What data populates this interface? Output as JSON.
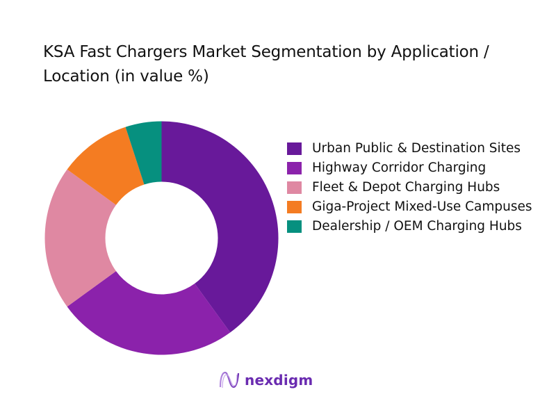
{
  "title": "KSA Fast Chargers Market Segmentation by Application / Location (in value %)",
  "chart_data": {
    "type": "pie",
    "subtype": "donut",
    "title": "KSA Fast Chargers Market Segmentation by Application / Location (in value %)",
    "categories": [
      "Urban Public & Destination Sites",
      "Highway Corridor Charging",
      "Fleet & Depot Charging Hubs",
      "Giga-Project Mixed-Use Campuses",
      "Dealership / OEM Charging Hubs"
    ],
    "values": [
      40,
      25,
      20,
      10,
      5
    ],
    "colors": [
      "#68199a",
      "#8b22ab",
      "#df88a2",
      "#f47c22",
      "#06907f"
    ],
    "legend_position": "right",
    "start_angle_deg": 0,
    "direction": "clockwise"
  },
  "legend": [
    {
      "label": "Urban Public & Destination Sites",
      "color": "#68199a"
    },
    {
      "label": "Highway Corridor Charging",
      "color": "#8b22ab"
    },
    {
      "label": "Fleet & Depot Charging Hubs",
      "color": "#df88a2"
    },
    {
      "label": "Giga-Project Mixed-Use Campuses",
      "color": "#f47c22"
    },
    {
      "label": "Dealership / OEM Charging Hubs",
      "color": "#06907f"
    }
  ],
  "logo": {
    "text": "nexdigm",
    "color": "#6a2bb0"
  }
}
